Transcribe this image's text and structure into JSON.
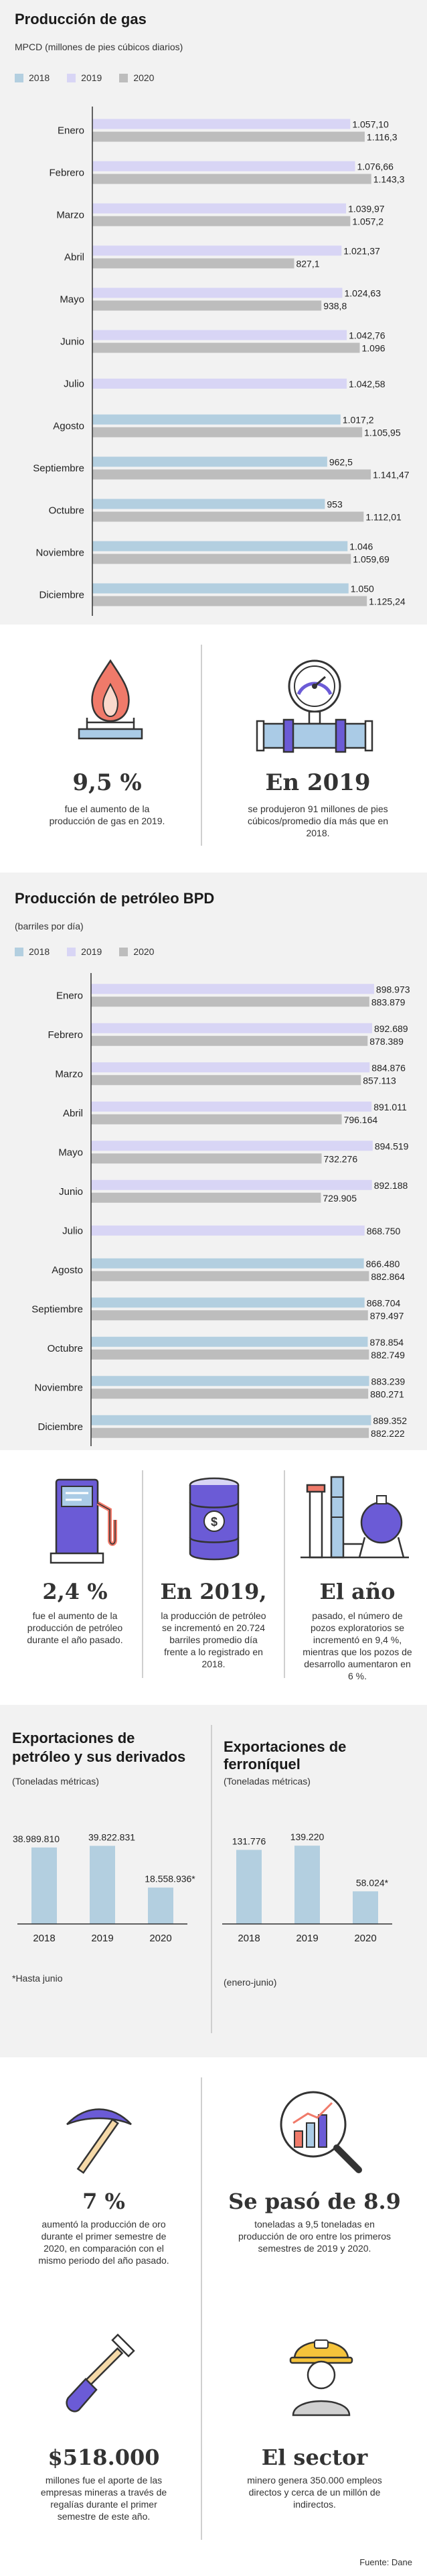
{
  "colors": {
    "c2018": "#b3cfe0",
    "c2019": "#d8d5f5",
    "c2020": "#bdbdbd",
    "axis": "#333333",
    "panel": "#f2f2f2",
    "icon_stroke": "#333333",
    "icon_accent": "#6b5bd6",
    "icon_flame": "#f07a6a",
    "icon_blue": "#aacbe6"
  },
  "gas": {
    "title": "Producción de gas",
    "subtitle": "MPCD (millones de pies cúbicos diarios)",
    "legend": [
      "2018",
      "2019",
      "2020"
    ]
  },
  "gas_stats": [
    {
      "big": "9,5 %",
      "desc": "fue el aumento de la producción de gas en 2019.",
      "icon": "gas-burner-flame-icon"
    },
    {
      "big": "En 2019",
      "desc": "se produjeron 91 millones de pies cúbicos/promedio día más que en 2018.",
      "icon": "pipeline-gauge-icon"
    }
  ],
  "oil": {
    "title": "Producción de petróleo BPD",
    "subtitle": "(barriles por día)",
    "legend": [
      "2018",
      "2019",
      "2020"
    ]
  },
  "oil_stats": [
    {
      "big": "2,4 %",
      "desc": "fue el aumento de la producción de petróleo durante el año pasado.",
      "icon": "fuel-pump-icon"
    },
    {
      "big": "En 2019,",
      "desc": "la producción de petróleo se incrementó en 20.724 barriles promedio día frente a lo registrado en 2018.",
      "icon": "oil-barrel-icon"
    },
    {
      "big": "El año",
      "desc": "pasado, el número de pozos exploratorios se incrementó en 9,4 %, mientras que los pozos de desarrollo aumentaron en 6 %.",
      "icon": "refinery-icon"
    }
  ],
  "exports": {
    "left_title_1": "Exportaciones de",
    "left_title_2": "petróleo y sus derivados",
    "left_unit": "(Toneladas métricas)",
    "left_note": "*Hasta junio",
    "right_title": "Exportaciones de ferroníquel",
    "right_unit": "(Toneladas métricas)",
    "right_note": "(enero-junio)"
  },
  "mining_stats": [
    {
      "big": "7 %",
      "desc": "aumentó la producción de oro durante el primer semestre de 2020, en comparación con el mismo periodo del año pasado.",
      "icon": "pickaxe-icon"
    },
    {
      "big": "Se pasó de 8.9",
      "desc": "toneladas a 9,5 toneladas en producción de oro entre los primeros semestres de 2019 y 2020.",
      "icon": "magnifier-growth-chart-icon"
    },
    {
      "big": "$518.000",
      "desc": "millones fue el aporte de las empresas mineras a través de regalías durante el primer semestre de este año.",
      "icon": "shovel-icon"
    },
    {
      "big": "El sector",
      "desc": "minero genera 350.000 empleos directos y cerca de un millón de indirectos.",
      "icon": "miner-helmet-icon"
    }
  ],
  "source": "Fuente: Dane",
  "chart_data": [
    {
      "type": "bar",
      "orientation": "horizontal",
      "title": "Producción de gas",
      "subtitle": "MPCD (millones de pies cúbicos diarios)",
      "categories": [
        "Enero",
        "Febrero",
        "Marzo",
        "Abril",
        "Mayo",
        "Junio",
        "Julio",
        "Agosto",
        "Septiembre",
        "Octubre",
        "Noviembre",
        "Diciembre"
      ],
      "series": [
        {
          "name": "2018",
          "values": [
            null,
            null,
            null,
            null,
            null,
            null,
            null,
            1017.2,
            962.5,
            953,
            1046,
            1050
          ],
          "labels": [
            "",
            "",
            "",
            "",
            "",
            "",
            "",
            "1.017,2",
            "962,5",
            "953",
            "1.046",
            "1.050"
          ]
        },
        {
          "name": "2019",
          "values": [
            1057.1,
            1076.66,
            1039.97,
            1021.37,
            1024.63,
            1042.76,
            1042.58,
            null,
            null,
            null,
            null,
            null
          ],
          "labels": [
            "1.057,10",
            "1.076,66",
            "1.039,97",
            "1.021,37",
            "1.024,63",
            "1.042,76",
            "1.042,58",
            "",
            "",
            "",
            "",
            ""
          ]
        },
        {
          "name": "2020",
          "values": [
            1116.3,
            1143.3,
            1057.2,
            827.1,
            938.8,
            1096,
            null,
            1105.95,
            1141.47,
            1112.01,
            1059.69,
            1125.24
          ],
          "labels": [
            "1.116,3",
            "1.143,3",
            "1.057,2",
            "827,1",
            "938,8",
            "1.096",
            "",
            "1.105,95",
            "1.141,47",
            "1.112,01",
            "1.059,69",
            "1.125,24"
          ]
        }
      ],
      "xlim": [
        0,
        1240
      ],
      "legend": "top-left"
    },
    {
      "type": "bar",
      "orientation": "horizontal",
      "title": "Producción de petróleo BPD",
      "subtitle": "(barriles por día)",
      "categories": [
        "Enero",
        "Febrero",
        "Marzo",
        "Abril",
        "Mayo",
        "Junio",
        "Julio",
        "Agosto",
        "Septiembre",
        "Octubre",
        "Noviembre",
        "Diciembre"
      ],
      "series": [
        {
          "name": "2018",
          "values": [
            null,
            null,
            null,
            null,
            null,
            null,
            null,
            866480,
            868704,
            878854,
            883239,
            889352
          ],
          "labels": [
            "",
            "",
            "",
            "",
            "",
            "",
            "",
            "866.480",
            "868.704",
            "878.854",
            "883.239",
            "889.352"
          ]
        },
        {
          "name": "2019",
          "values": [
            898973,
            892689,
            884876,
            891011,
            894519,
            892188,
            868750,
            null,
            null,
            null,
            null,
            null
          ],
          "labels": [
            "898.973",
            "892.689",
            "884.876",
            "891.011",
            "894.519",
            "892.188",
            "868.750",
            "",
            "",
            "",
            "",
            ""
          ]
        },
        {
          "name": "2020",
          "values": [
            883879,
            878389,
            857113,
            796164,
            732276,
            729905,
            null,
            882864,
            879497,
            882749,
            880271,
            882222
          ],
          "labels": [
            "883.879",
            "878.389",
            "857.113",
            "796.164",
            "732.276",
            "729.905",
            "",
            "882.864",
            "879.497",
            "882.749",
            "880.271",
            "882.222"
          ]
        }
      ],
      "xlim": [
        0,
        965000
      ],
      "legend": "top-left"
    },
    {
      "type": "bar",
      "title": "Exportaciones de petróleo y sus derivados",
      "ylabel": "(Toneladas métricas)",
      "categories": [
        "2018",
        "2019",
        "2020"
      ],
      "values": [
        38989810,
        39822831,
        18558936
      ],
      "labels": [
        "38.989.810",
        "39.822.831",
        "18.558.936*"
      ],
      "ylim": [
        0,
        41000000
      ]
    },
    {
      "type": "bar",
      "title": "Exportaciones de ferroníquel",
      "ylabel": "(Toneladas métricas)",
      "categories": [
        "2018",
        "2019",
        "2020"
      ],
      "values": [
        131776,
        139220,
        58024
      ],
      "labels": [
        "131.776",
        "139.220",
        "58.024*"
      ],
      "ylim": [
        0,
        143000
      ]
    }
  ]
}
